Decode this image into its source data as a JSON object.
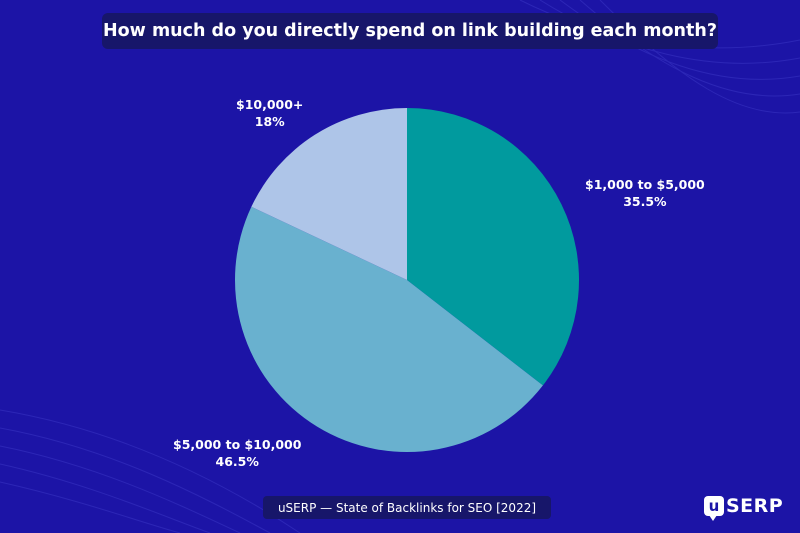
{
  "title": "How much do you directly spend on link building each month?",
  "source": "uSERP — State of Backlinks for SEO [2022]",
  "logo": {
    "mark_letter": "u",
    "text": "SERP"
  },
  "colors": {
    "background": "#1c14a6",
    "label_box": "#17166a",
    "slice_teal": "#019a9e",
    "slice_mid_blue": "#69b1cf",
    "slice_light_blue": "#aec5e8"
  },
  "chart_data": {
    "type": "pie",
    "title": "How much do you directly spend on link building each month?",
    "start_angle": "12 o'clock",
    "direction": "clockwise",
    "slices": [
      {
        "label": "$1,000 to $5,000",
        "value": 35.5,
        "value_label": "35.5%",
        "color": "#019a9e"
      },
      {
        "label": "$5,000 to $10,000",
        "value": 46.5,
        "value_label": "46.5%",
        "color": "#69b1cf"
      },
      {
        "label": "$10,000+",
        "value": 18,
        "value_label": "18%",
        "color": "#aec5e8"
      }
    ]
  }
}
